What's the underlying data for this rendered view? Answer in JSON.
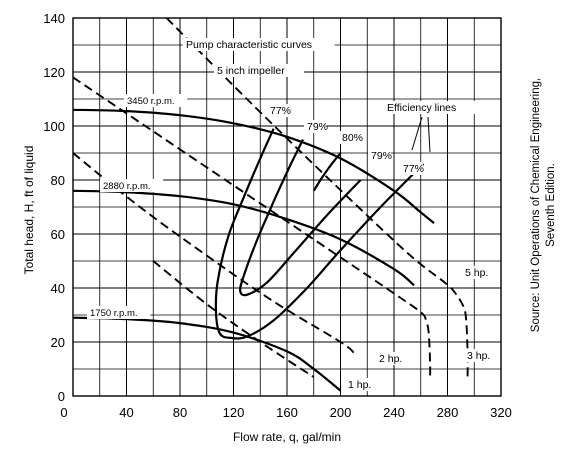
{
  "chart_data": {
    "type": "line",
    "title": "",
    "xlabel": "Flow rate, q, gal/min",
    "ylabel": "Total head, H, ft of liquid",
    "xlim": [
      0,
      320
    ],
    "ylim": [
      0,
      140
    ],
    "xticks": [
      0,
      40,
      80,
      120,
      160,
      200,
      240,
      280,
      320
    ],
    "yticks": [
      0,
      20,
      40,
      60,
      80,
      100,
      120,
      140
    ],
    "grid": true,
    "head_curves": [
      {
        "label": "3450 r.p.m.",
        "x": [
          0,
          40,
          80,
          120,
          160,
          200,
          240,
          260,
          270
        ],
        "y": [
          106,
          105.5,
          104,
          101,
          96,
          88,
          76,
          68,
          64
        ]
      },
      {
        "label": "2880 r.p.m.",
        "x": [
          0,
          40,
          80,
          120,
          160,
          200,
          240,
          255
        ],
        "y": [
          76,
          75.5,
          74,
          71,
          65.5,
          58,
          47,
          41
        ]
      },
      {
        "label": "1750 r.p.m.",
        "x": [
          0,
          40,
          80,
          120,
          160,
          180,
          200
        ],
        "y": [
          29,
          28.5,
          27,
          23.5,
          16.5,
          10,
          2
        ]
      }
    ],
    "power_lines": [
      {
        "label": "5 hp.",
        "x": [
          70,
          130,
          190,
          250,
          278,
          286,
          292,
          294,
          295,
          295
        ],
        "y": [
          140,
          110,
          81,
          53,
          42,
          38,
          33,
          28,
          16,
          7
        ]
      },
      {
        "label": "3 hp.",
        "x": [
          0,
          60,
          120,
          180,
          240,
          260,
          264,
          266,
          267,
          267
        ],
        "y": [
          118,
          98,
          78,
          58,
          38,
          31,
          28,
          23,
          12,
          7
        ]
      },
      {
        "label": "2 hp.",
        "x": [
          0,
          50,
          100,
          150,
          200,
          210
        ],
        "y": [
          90,
          70,
          52,
          35,
          20,
          16
        ]
      },
      {
        "label": "1 hp.",
        "x": [
          60,
          100,
          140,
          180
        ],
        "y": [
          50,
          34,
          20,
          7
        ]
      }
    ],
    "efficiency_curves": [
      {
        "label": "77%",
        "x": [
          150,
          140,
          128,
          116,
          108,
          107,
          110,
          118,
          130,
          150,
          175,
          200,
          230,
          262
        ],
        "y": [
          99,
          88,
          74,
          59,
          42,
          30,
          23,
          21.5,
          22,
          28,
          40,
          54,
          70,
          86
        ]
      },
      {
        "label": "79%",
        "x": [
          172,
          162,
          150,
          137,
          128,
          125,
          130,
          145,
          165,
          190,
          215
        ],
        "y": [
          95,
          85,
          72,
          57,
          45,
          39,
          37.5,
          42,
          53,
          67,
          80
        ]
      },
      {
        "label": "80%",
        "x": [
          180,
          185,
          192,
          200
        ],
        "y": [
          76,
          80,
          85,
          90
        ]
      }
    ],
    "annotations": {
      "pump_curves": "Pump characteristic curves",
      "impeller": "5 inch impeller",
      "efficiency_lines": "Efficiency lines",
      "eff_77_left": "77%",
      "eff_79_left": "79%",
      "eff_80": "80%",
      "eff_79_right": "79%",
      "eff_77_right": "77%"
    },
    "source": [
      "Source: Unit Operations of Chemical Engineering,",
      "Seventh Edition."
    ]
  }
}
